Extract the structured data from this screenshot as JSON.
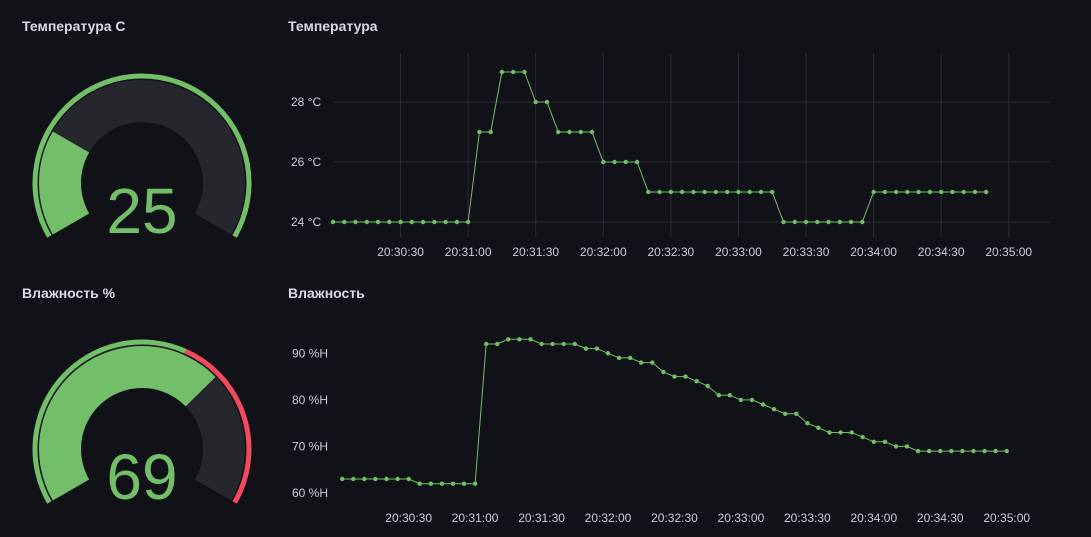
{
  "panels": {
    "temp_gauge": {
      "title": "Температура C",
      "value": "25"
    },
    "temp_chart": {
      "title": "Температура"
    },
    "hum_gauge": {
      "title": "Влажность %",
      "value": "69"
    },
    "hum_chart": {
      "title": "Влажность"
    }
  },
  "colors": {
    "background": "#111217",
    "series": "#73bf69",
    "threshold_red": "#f2495c",
    "gauge_track": "#25272c",
    "grid": "#2a2c33",
    "text": "#ccccdc"
  },
  "chart_data": [
    {
      "type": "gauge",
      "title": "Температура C",
      "value": 25,
      "min": 0,
      "max": 100,
      "unit": "C",
      "threshold_ring": [
        {
          "color": "#73bf69",
          "from": 0,
          "to": 100
        }
      ]
    },
    {
      "type": "line",
      "title": "Температура",
      "y_unit": "°C",
      "ylim": [
        23.5,
        29.5
      ],
      "y_ticks": [
        "24 °C",
        "26 °C",
        "28 °C"
      ],
      "y_tick_values": [
        24,
        26,
        28
      ],
      "x_ticks": [
        "20:30:30",
        "20:31:00",
        "20:31:30",
        "20:32:00",
        "20:32:30",
        "20:33:00",
        "20:33:30",
        "20:34:00",
        "20:34:30",
        "20:35:00"
      ],
      "xlim": [
        "20:30:00",
        "20:35:05"
      ],
      "grid": true,
      "series": [
        {
          "color": "#73bf69",
          "x": [
            "20:30:00",
            "20:30:05",
            "20:30:10",
            "20:30:15",
            "20:30:20",
            "20:30:25",
            "20:30:30",
            "20:30:35",
            "20:30:40",
            "20:30:45",
            "20:30:50",
            "20:30:55",
            "20:31:00",
            "20:31:05",
            "20:31:10",
            "20:31:15",
            "20:31:20",
            "20:31:25",
            "20:31:30",
            "20:31:35",
            "20:31:40",
            "20:31:45",
            "20:31:50",
            "20:31:55",
            "20:32:00",
            "20:32:05",
            "20:32:10",
            "20:32:15",
            "20:32:20",
            "20:32:25",
            "20:32:30",
            "20:32:35",
            "20:32:40",
            "20:32:45",
            "20:32:50",
            "20:32:55",
            "20:33:00",
            "20:33:05",
            "20:33:10",
            "20:33:15",
            "20:33:20",
            "20:33:25",
            "20:33:30",
            "20:33:35",
            "20:33:40",
            "20:33:45",
            "20:33:50",
            "20:33:55",
            "20:34:00",
            "20:34:05",
            "20:34:10",
            "20:34:15",
            "20:34:20",
            "20:34:25",
            "20:34:30",
            "20:34:35",
            "20:34:40",
            "20:34:45",
            "20:34:50"
          ],
          "values": [
            24,
            24,
            24,
            24,
            24,
            24,
            24,
            24,
            24,
            24,
            24,
            24,
            24,
            27,
            27,
            29,
            29,
            29,
            28,
            28,
            27,
            27,
            27,
            27,
            26,
            26,
            26,
            26,
            25,
            25,
            25,
            25,
            25,
            25,
            25,
            25,
            25,
            25,
            25,
            25,
            24,
            24,
            24,
            24,
            24,
            24,
            24,
            24,
            25,
            25,
            25,
            25,
            25,
            25,
            25,
            25,
            25,
            25,
            25
          ]
        }
      ]
    },
    {
      "type": "gauge",
      "title": "Влажность %",
      "value": 69,
      "min": 0,
      "max": 100,
      "unit": "%",
      "threshold_ring": [
        {
          "color": "#73bf69",
          "from": 0,
          "to": 60
        },
        {
          "color": "#f2495c",
          "from": 60,
          "to": 100
        }
      ]
    },
    {
      "type": "line",
      "title": "Влажность",
      "y_unit": "%H",
      "ylim": [
        58.5,
        95
      ],
      "y_ticks": [
        "60 %H",
        "70 %H",
        "80 %H",
        "90 %H"
      ],
      "y_tick_values": [
        60,
        70,
        80,
        90
      ],
      "x_ticks": [
        "20:30:30",
        "20:31:00",
        "20:31:30",
        "20:32:00",
        "20:32:30",
        "20:33:00",
        "20:33:30",
        "20:34:00",
        "20:34:30",
        "20:35:00"
      ],
      "xlim": [
        "20:29:59",
        "20:35:06"
      ],
      "grid": false,
      "series": [
        {
          "color": "#73bf69",
          "x": [
            "20:30:00",
            "20:30:05",
            "20:30:10",
            "20:30:15",
            "20:30:20",
            "20:30:25",
            "20:30:30",
            "20:30:35",
            "20:30:40",
            "20:30:45",
            "20:30:50",
            "20:30:55",
            "20:31:00",
            "20:31:05",
            "20:31:10",
            "20:31:15",
            "20:31:20",
            "20:31:25",
            "20:31:30",
            "20:31:35",
            "20:31:40",
            "20:31:45",
            "20:31:50",
            "20:31:55",
            "20:32:00",
            "20:32:05",
            "20:32:10",
            "20:32:15",
            "20:32:20",
            "20:32:25",
            "20:32:30",
            "20:32:35",
            "20:32:40",
            "20:32:45",
            "20:32:50",
            "20:32:55",
            "20:33:00",
            "20:33:05",
            "20:33:10",
            "20:33:15",
            "20:33:20",
            "20:33:25",
            "20:33:30",
            "20:33:35",
            "20:33:40",
            "20:33:45",
            "20:33:50",
            "20:33:55",
            "20:34:00",
            "20:34:05",
            "20:34:10",
            "20:34:15",
            "20:34:20",
            "20:34:25",
            "20:34:30",
            "20:34:35",
            "20:34:40",
            "20:34:45",
            "20:34:50",
            "20:34:55",
            "20:35:00"
          ],
          "values": [
            63,
            63,
            63,
            63,
            63,
            63,
            63,
            62,
            62,
            62,
            62,
            62,
            62,
            92,
            92,
            93,
            93,
            93,
            92,
            92,
            92,
            92,
            91,
            91,
            90,
            89,
            89,
            88,
            88,
            86,
            85,
            85,
            84,
            83,
            81,
            81,
            80,
            80,
            79,
            78,
            77,
            77,
            75,
            74,
            73,
            73,
            73,
            72,
            71,
            71,
            70,
            70,
            69,
            69,
            69,
            69,
            69,
            69,
            69,
            69,
            69
          ]
        }
      ]
    }
  ]
}
